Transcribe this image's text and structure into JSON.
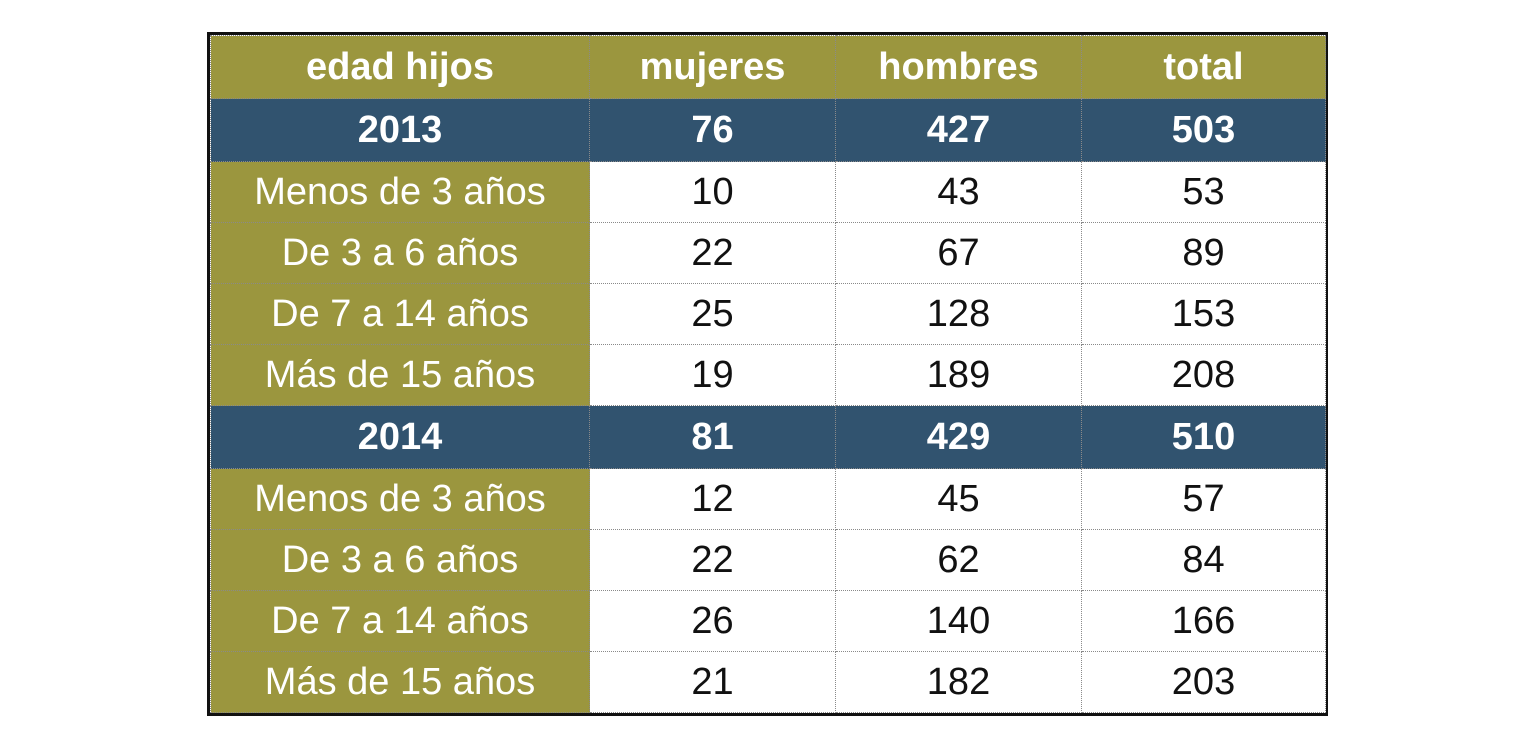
{
  "chart_data": {
    "type": "table",
    "columns": [
      "edad hijos",
      "mujeres",
      "hombres",
      "total"
    ],
    "groups": [
      {
        "year": "2013",
        "totals": {
          "mujeres": 76,
          "hombres": 427,
          "total": 503
        },
        "rows": [
          {
            "label": "Menos de 3 años",
            "mujeres": 10,
            "hombres": 43,
            "total": 53
          },
          {
            "label": "De 3 a 6 años",
            "mujeres": 22,
            "hombres": 67,
            "total": 89
          },
          {
            "label": "De 7 a 14 años",
            "mujeres": 25,
            "hombres": 128,
            "total": 153
          },
          {
            "label": "Más de 15 años",
            "mujeres": 19,
            "hombres": 189,
            "total": 208
          }
        ]
      },
      {
        "year": "2014",
        "totals": {
          "mujeres": 81,
          "hombres": 429,
          "total": 510
        },
        "rows": [
          {
            "label": "Menos de 3 años",
            "mujeres": 12,
            "hombres": 45,
            "total": 57
          },
          {
            "label": "De 3 a 6 años",
            "mujeres": 22,
            "hombres": 62,
            "total": 84
          },
          {
            "label": "De 7 a 14 años",
            "mujeres": 26,
            "hombres": 140,
            "total": 166
          },
          {
            "label": "Más de 15 años",
            "mujeres": 21,
            "hombres": 182,
            "total": 203
          }
        ]
      }
    ]
  },
  "colors": {
    "header_bg": "#9b963e",
    "year_row_bg": "#31536f",
    "label_bg": "#9b963e",
    "value_bg": "#ffffff",
    "header_text": "#ffffff",
    "value_text": "#111111"
  }
}
